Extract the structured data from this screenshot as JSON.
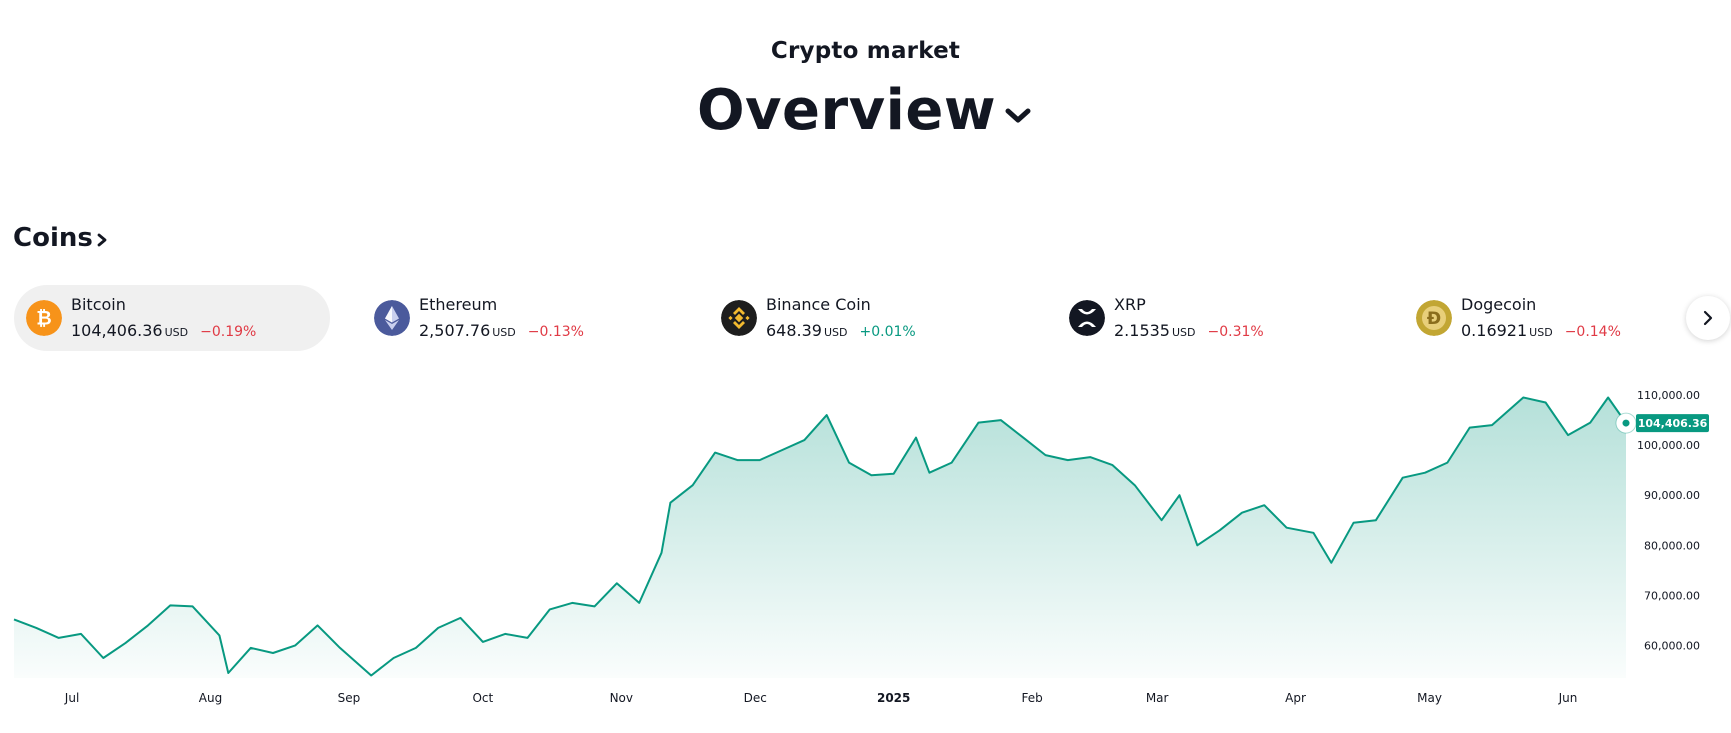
{
  "header": {
    "subtitle": "Crypto market",
    "title": "Overview"
  },
  "coins_section": {
    "title": "Coins"
  },
  "coins": [
    {
      "name": "Bitcoin",
      "price": "104,406.36",
      "currency": "USD",
      "change": "−0.19%",
      "direction": "down",
      "selected": true,
      "logo_color": "#F7931A",
      "icon": "bitcoin-icon",
      "glyph": "₿"
    },
    {
      "name": "Ethereum",
      "price": "2,507.76",
      "currency": "USD",
      "change": "−0.13%",
      "direction": "down",
      "selected": false,
      "logo_color": "#4B5A9C",
      "icon": "ethereum-icon",
      "glyph": ""
    },
    {
      "name": "Binance Coin",
      "price": "648.39",
      "currency": "USD",
      "change": "+0.01%",
      "direction": "up",
      "selected": false,
      "logo_color": "#1E1E1E",
      "icon": "binance-coin-icon",
      "glyph": ""
    },
    {
      "name": "XRP",
      "price": "2.1535",
      "currency": "USD",
      "change": "−0.31%",
      "direction": "down",
      "selected": false,
      "logo_color": "#131722",
      "icon": "xrp-icon",
      "glyph": ""
    },
    {
      "name": "Dogecoin",
      "price": "0.16921",
      "currency": "USD",
      "change": "−0.14%",
      "direction": "down",
      "selected": false,
      "logo_color": "#C2A633",
      "icon": "dogecoin-icon",
      "glyph": "Ð"
    }
  ],
  "chart_data": {
    "type": "area",
    "series_color": "#089981",
    "last_value_label": "104,406.36",
    "y_ticks": [
      "110,000.00",
      "100,000.00",
      "90,000.00",
      "80,000.00",
      "70,000.00",
      "60,000.00"
    ],
    "y_tick_values": [
      110000,
      100000,
      90000,
      80000,
      70000,
      60000
    ],
    "ylim": [
      53500,
      113000
    ],
    "x_ticks": [
      "Jul",
      "Aug",
      "Sep",
      "Oct",
      "Nov",
      "Dec",
      "2025",
      "Feb",
      "Mar",
      "Apr",
      "May",
      "Jun"
    ],
    "x_tick_dates": [
      "2024-07-01",
      "2024-08-01",
      "2024-09-01",
      "2024-10-01",
      "2024-11-01",
      "2024-12-01",
      "2025-01-01",
      "2025-02-01",
      "2025-03-01",
      "2025-04-01",
      "2025-05-01",
      "2025-06-01"
    ],
    "bold_tick": "2025",
    "x": [
      "2024-06-18",
      "2024-06-23",
      "2024-06-28",
      "2024-07-03",
      "2024-07-08",
      "2024-07-13",
      "2024-07-18",
      "2024-07-23",
      "2024-07-28",
      "2024-08-03",
      "2024-08-05",
      "2024-08-10",
      "2024-08-15",
      "2024-08-20",
      "2024-08-25",
      "2024-08-30",
      "2024-09-06",
      "2024-09-11",
      "2024-09-16",
      "2024-09-21",
      "2024-09-26",
      "2024-10-01",
      "2024-10-06",
      "2024-10-11",
      "2024-10-16",
      "2024-10-21",
      "2024-10-26",
      "2024-10-31",
      "2024-11-05",
      "2024-11-10",
      "2024-11-12",
      "2024-11-17",
      "2024-11-22",
      "2024-11-27",
      "2024-12-02",
      "2024-12-07",
      "2024-12-12",
      "2024-12-17",
      "2024-12-22",
      "2024-12-27",
      "2025-01-01",
      "2025-01-06",
      "2025-01-09",
      "2025-01-14",
      "2025-01-20",
      "2025-01-25",
      "2025-01-30",
      "2025-02-04",
      "2025-02-09",
      "2025-02-14",
      "2025-02-19",
      "2025-02-24",
      "2025-03-02",
      "2025-03-06",
      "2025-03-10",
      "2025-03-15",
      "2025-03-20",
      "2025-03-25",
      "2025-03-30",
      "2025-04-05",
      "2025-04-09",
      "2025-04-14",
      "2025-04-19",
      "2025-04-25",
      "2025-04-30",
      "2025-05-05",
      "2025-05-10",
      "2025-05-15",
      "2025-05-22",
      "2025-05-27",
      "2025-06-01",
      "2025-06-06",
      "2025-06-10",
      "2025-06-14"
    ],
    "values": [
      65200,
      63500,
      61500,
      62300,
      57500,
      60500,
      64000,
      68000,
      67800,
      62000,
      54500,
      59500,
      58500,
      60000,
      64000,
      59500,
      54000,
      57500,
      59500,
      63500,
      65500,
      60700,
      62300,
      61500,
      67200,
      68500,
      67800,
      72400,
      68500,
      78500,
      88500,
      92000,
      98500,
      97000,
      97000,
      99000,
      101000,
      106000,
      96500,
      94000,
      94300,
      101500,
      94500,
      96500,
      104500,
      105000,
      101500,
      98000,
      97000,
      97600,
      96000,
      92000,
      85000,
      90000,
      80000,
      83000,
      86500,
      88000,
      83500,
      82500,
      76500,
      84500,
      85000,
      93500,
      94500,
      96500,
      103500,
      104000,
      109500,
      108500,
      102000,
      104500,
      109500,
      104400
    ]
  }
}
